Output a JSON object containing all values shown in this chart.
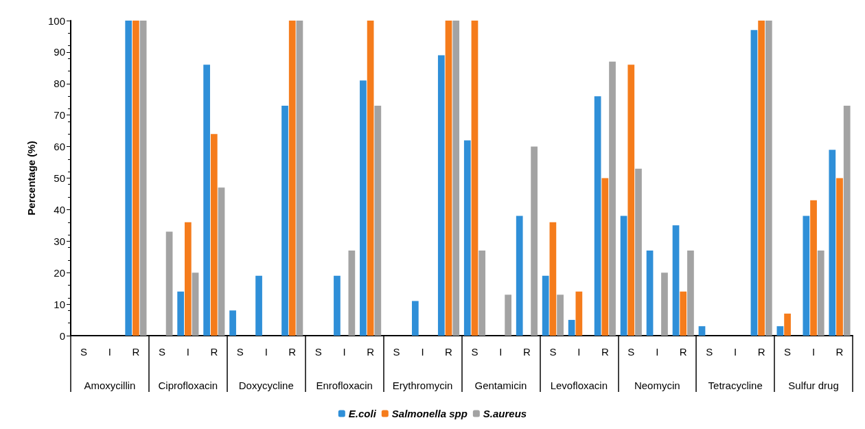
{
  "chart_data": {
    "type": "bar",
    "ylabel": "Percentage (%)",
    "categories": [
      "S",
      "I",
      "R",
      "S",
      "I",
      "R",
      "S",
      "I",
      "R",
      "S",
      "I",
      "R",
      "S",
      "I",
      "R",
      "S",
      "I",
      "R",
      "S",
      "I",
      "R",
      "S",
      "I",
      "R",
      "S",
      "I",
      "R",
      "S",
      "I",
      "R"
    ],
    "annotations": [
      "Amoxycillin",
      "Ciprofloxacin",
      "Doxycycline",
      "Enrofloxacin",
      "Erythromycin",
      "Gentamicin",
      "Levofloxacin",
      "Neomycin",
      "Tetracycline",
      "Sulfur drug"
    ],
    "series": [
      {
        "name": "E.coli",
        "color": "#2f8fd8",
        "values": [
          0,
          0,
          100,
          0,
          14,
          86,
          8,
          19,
          73,
          0,
          19,
          81,
          0,
          11,
          89,
          62,
          0,
          38,
          19,
          5,
          76,
          38,
          27,
          35,
          3,
          0,
          97,
          3,
          38,
          59
        ]
      },
      {
        "name": "Salmonella spp",
        "color": "#f57c1c",
        "values": [
          0,
          0,
          100,
          0,
          36,
          64,
          0,
          0,
          100,
          0,
          0,
          100,
          0,
          0,
          100,
          100,
          0,
          0,
          36,
          14,
          50,
          86,
          0,
          14,
          0,
          0,
          100,
          7,
          43,
          50
        ]
      },
      {
        "name": "S.aureus",
        "color": "#a3a3a3",
        "values": [
          0,
          0,
          100,
          33,
          20,
          47,
          0,
          0,
          100,
          0,
          27,
          73,
          0,
          0,
          100,
          27,
          13,
          60,
          13,
          0,
          87,
          53,
          20,
          27,
          0,
          0,
          100,
          0,
          27,
          73
        ]
      }
    ],
    "ylim": [
      0,
      100
    ],
    "yticks": [
      0,
      10,
      20,
      30,
      40,
      50,
      60,
      70,
      80,
      90,
      100
    ],
    "grid": false,
    "legend": "bottom"
  }
}
